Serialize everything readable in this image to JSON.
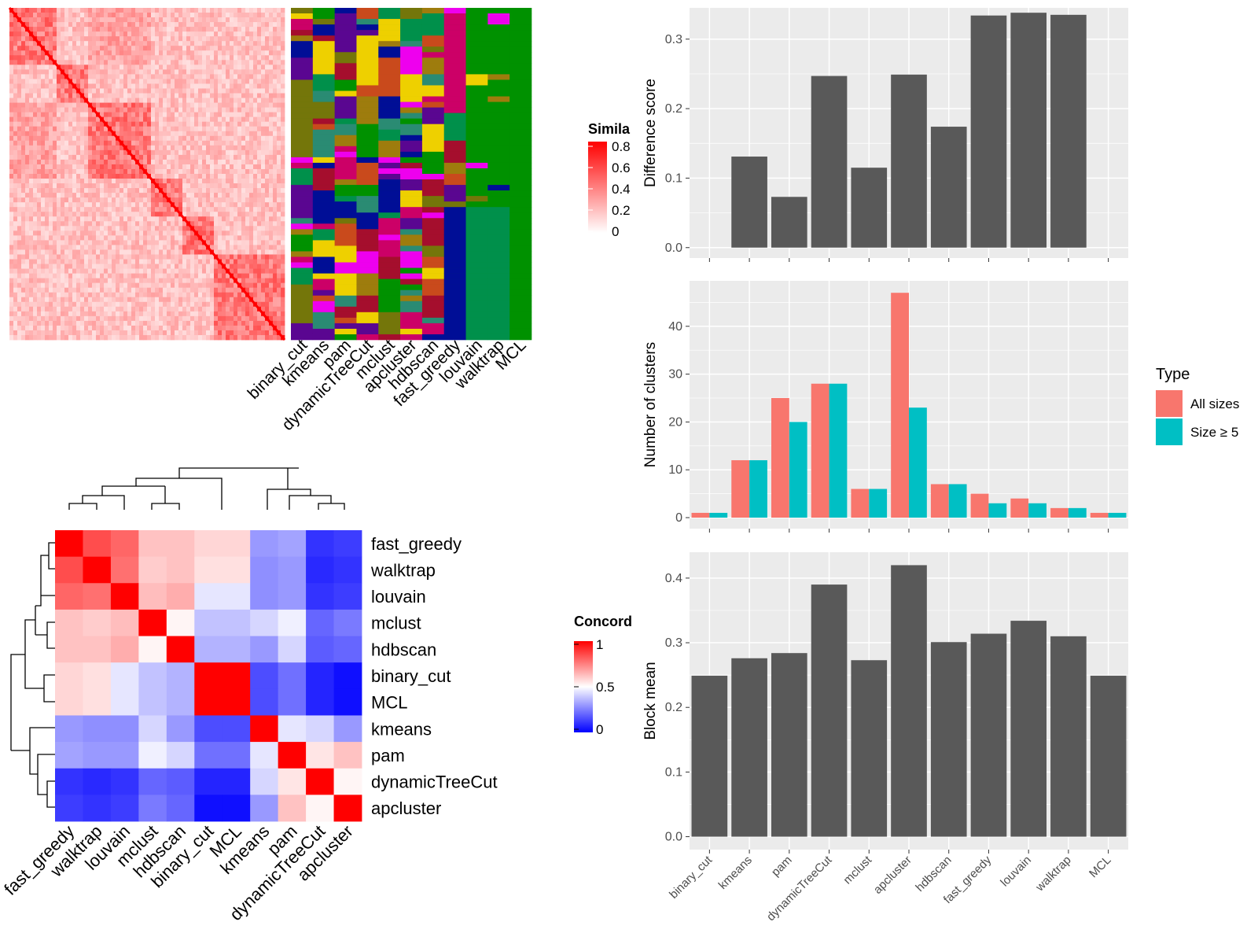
{
  "colors": {
    "bar_gray": "#595959",
    "panel_bg": "#ebebeb",
    "grid": "#ffffff",
    "all_sizes": "#f8766d",
    "size_ge_5": "#00bfc4",
    "sim_high": "#ff0000",
    "sim_low": "#ffffff",
    "conc_high": "#ff0000",
    "conc_mid": "#ffffff",
    "conc_low": "#0000ff",
    "cluster_palette": [
      "#009100",
      "#00904b",
      "#000e96",
      "#eed000",
      "#a50e2d",
      "#c94a1c",
      "#5a0691",
      "#ee00ee",
      "#2a8b73",
      "#74760a",
      "#9e7c0d",
      "#cc0067"
    ]
  },
  "heatmap_similarity": {
    "legend_title": "Simila",
    "legend_ticks": [
      "0.8",
      "0.6",
      "0.4",
      "0.2",
      "0"
    ],
    "method_labels": [
      "binary_cut",
      "kmeans",
      "pam",
      "dynamicTreeCut",
      "mclust",
      "apcluster",
      "hdbscan",
      "fast_greedy",
      "louvain",
      "walktrap",
      "MCL"
    ]
  },
  "concordance": {
    "legend_title": "Concord",
    "legend_ticks": [
      "1",
      "0.5",
      "0"
    ],
    "row_labels": [
      "fast_greedy",
      "walktrap",
      "louvain",
      "mclust",
      "hdbscan",
      "binary_cut",
      "MCL",
      "kmeans",
      "pam",
      "dynamicTreeCut",
      "apcluster"
    ],
    "col_labels": [
      "fast_greedy",
      "walktrap",
      "louvain",
      "mclust",
      "hdbscan",
      "binary_cut",
      "MCL",
      "kmeans",
      "pam",
      "dynamicTreeCut",
      "apcluster"
    ],
    "matrix": [
      [
        1.0,
        0.85,
        0.8,
        0.62,
        0.62,
        0.58,
        0.58,
        0.3,
        0.32,
        0.1,
        0.12
      ],
      [
        0.85,
        1.0,
        0.78,
        0.6,
        0.62,
        0.56,
        0.56,
        0.28,
        0.3,
        0.08,
        0.1
      ],
      [
        0.8,
        0.78,
        1.0,
        0.63,
        0.66,
        0.45,
        0.45,
        0.28,
        0.3,
        0.1,
        0.12
      ],
      [
        0.62,
        0.6,
        0.63,
        1.0,
        0.52,
        0.38,
        0.38,
        0.42,
        0.47,
        0.2,
        0.24
      ],
      [
        0.62,
        0.62,
        0.66,
        0.52,
        1.0,
        0.35,
        0.35,
        0.3,
        0.42,
        0.18,
        0.2
      ],
      [
        0.58,
        0.56,
        0.45,
        0.38,
        0.35,
        1.0,
        1.0,
        0.15,
        0.22,
        0.07,
        0.03
      ],
      [
        0.58,
        0.56,
        0.45,
        0.38,
        0.35,
        1.0,
        1.0,
        0.15,
        0.22,
        0.07,
        0.03
      ],
      [
        0.3,
        0.28,
        0.28,
        0.42,
        0.3,
        0.15,
        0.15,
        1.0,
        0.45,
        0.42,
        0.3
      ],
      [
        0.32,
        0.3,
        0.3,
        0.47,
        0.42,
        0.22,
        0.22,
        0.45,
        1.0,
        0.55,
        0.62
      ],
      [
        0.1,
        0.08,
        0.1,
        0.2,
        0.18,
        0.07,
        0.07,
        0.42,
        0.55,
        1.0,
        0.52
      ],
      [
        0.12,
        0.1,
        0.12,
        0.24,
        0.2,
        0.03,
        0.03,
        0.3,
        0.62,
        0.52,
        1.0
      ]
    ]
  },
  "chart_data": [
    {
      "type": "bar",
      "categories": [
        "binary_cut",
        "kmeans",
        "pam",
        "dynamicTreeCut",
        "mclust",
        "apcluster",
        "hdbscan",
        "fast_greedy",
        "louvain",
        "walktrap",
        "MCL"
      ],
      "values": [
        0.0,
        0.131,
        0.073,
        0.247,
        0.115,
        0.249,
        0.174,
        0.334,
        0.338,
        0.335,
        0.0
      ],
      "xlabel": "",
      "ylabel": "Difference score",
      "ylim": [
        -0.015,
        0.345
      ],
      "yticks": [
        0.0,
        0.1,
        0.2,
        0.3
      ],
      "ytick_labels": [
        "0.0",
        "0.1",
        "0.2",
        "0.3"
      ],
      "grid": true
    },
    {
      "type": "bar",
      "categories": [
        "binary_cut",
        "kmeans",
        "pam",
        "dynamicTreeCut",
        "mclust",
        "apcluster",
        "hdbscan",
        "fast_greedy",
        "louvain",
        "walktrap",
        "MCL"
      ],
      "series": [
        {
          "name": "All sizes",
          "values": [
            1,
            12,
            25,
            28,
            6,
            47,
            7,
            5,
            4,
            2,
            1
          ]
        },
        {
          "name": "Size ≥ 5",
          "values": [
            1,
            12,
            20,
            28,
            6,
            23,
            7,
            3,
            3,
            2,
            1
          ]
        }
      ],
      "xlabel": "",
      "ylabel": "Number of clusters",
      "ylim": [
        -2.3,
        49.5
      ],
      "yticks": [
        0,
        10,
        20,
        30,
        40
      ],
      "ytick_labels": [
        "0",
        "10",
        "20",
        "30",
        "40"
      ],
      "legend_title": "Type",
      "legend_position": "right",
      "grid": true
    },
    {
      "type": "bar",
      "categories": [
        "binary_cut",
        "kmeans",
        "pam",
        "dynamicTreeCut",
        "mclust",
        "apcluster",
        "hdbscan",
        "fast_greedy",
        "louvain",
        "walktrap",
        "MCL"
      ],
      "values": [
        0.249,
        0.276,
        0.284,
        0.39,
        0.273,
        0.42,
        0.301,
        0.314,
        0.334,
        0.31,
        0.249
      ],
      "xlabel": "",
      "ylabel": "Block mean",
      "ylim": [
        -0.02,
        0.44
      ],
      "yticks": [
        0.0,
        0.1,
        0.2,
        0.3,
        0.4
      ],
      "ytick_labels": [
        "0.0",
        "0.1",
        "0.2",
        "0.3",
        "0.4"
      ],
      "grid": true
    }
  ]
}
